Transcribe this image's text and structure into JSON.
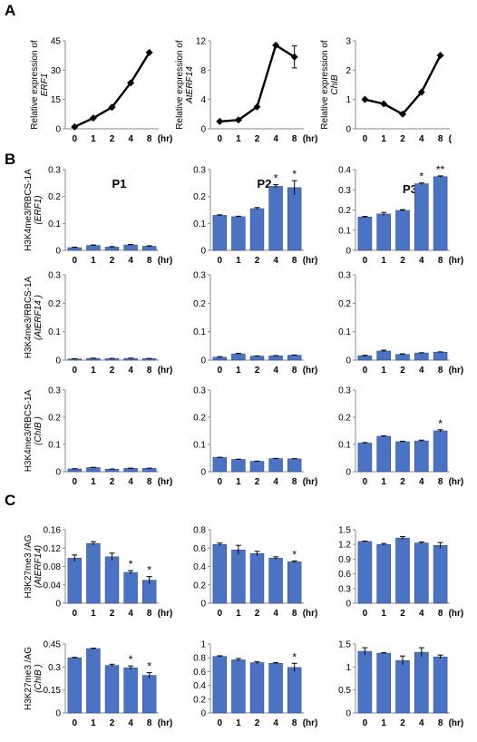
{
  "panels": {
    "A": "A",
    "B": "B",
    "C": "C"
  },
  "chart_data": [
    {
      "id": "A1",
      "panel": "A",
      "type": "line",
      "categories": [
        "0",
        "1",
        "2",
        "4",
        "8"
      ],
      "x_unit": "(hr)",
      "values": [
        1,
        5.5,
        11,
        23.5,
        39
      ],
      "errors": [
        0,
        0,
        0,
        0,
        0
      ],
      "ylim": [
        0,
        45
      ],
      "yticks": [
        "0",
        "15",
        "30",
        "45"
      ],
      "ylabel": [
        "Relative expression  of",
        "ERF1"
      ]
    },
    {
      "id": "A2",
      "panel": "A",
      "type": "line",
      "categories": [
        "0",
        "1",
        "2",
        "4",
        "8"
      ],
      "x_unit": "(hr)",
      "values": [
        1,
        1.2,
        3,
        11.4,
        9.8
      ],
      "errors": [
        0,
        0,
        0,
        0,
        1.5
      ],
      "ylim": [
        0,
        12
      ],
      "yticks": [
        "0",
        "4",
        "8",
        "12"
      ],
      "ylabel": [
        "Relative expression  of",
        "AtERF14"
      ]
    },
    {
      "id": "A3",
      "panel": "A",
      "type": "line",
      "categories": [
        "0",
        "1",
        "2",
        "4",
        "8"
      ],
      "x_unit": "(",
      "values": [
        1,
        0.85,
        0.5,
        1.25,
        2.5
      ],
      "errors": [
        0,
        0,
        0,
        0,
        0
      ],
      "ylim": [
        0,
        3
      ],
      "yticks": [
        "0",
        "1",
        "2",
        "3"
      ],
      "ylabel": [
        "Relative expression  of",
        "ChIB"
      ]
    },
    {
      "id": "B11",
      "panel": "B",
      "type": "bar",
      "title": "P1",
      "categories": [
        "0",
        "1",
        "2",
        "4",
        "8"
      ],
      "x_unit": "(hr)",
      "values": [
        0.01,
        0.018,
        0.012,
        0.02,
        0.015
      ],
      "errors": [
        0.002,
        0.002,
        0.002,
        0.002,
        0.002
      ],
      "stars": [
        "",
        "",
        "",
        "",
        ""
      ],
      "ylim": [
        0,
        0.3
      ],
      "yticks": [
        "0",
        "0.1",
        "0.2",
        "0.3"
      ],
      "ylabel": [
        "H3K4me3/RBCS-1A",
        "(ERF1)"
      ]
    },
    {
      "id": "B12",
      "panel": "B",
      "type": "bar",
      "title": "P2",
      "categories": [
        "0",
        "1",
        "2",
        "4",
        "8"
      ],
      "x_unit": "(hr)",
      "values": [
        0.13,
        0.125,
        0.155,
        0.238,
        0.233
      ],
      "errors": [
        0.002,
        0.002,
        0.004,
        0.006,
        0.026
      ],
      "stars": [
        "",
        "",
        "",
        "*",
        "*"
      ],
      "ylim": [
        0,
        0.3
      ],
      "yticks": [
        "0",
        "0.1",
        "0.2",
        "0.3"
      ],
      "ylabel": [
        "",
        ""
      ]
    },
    {
      "id": "B13",
      "panel": "B",
      "type": "bar",
      "title": "P3",
      "categories": [
        "0",
        "1",
        "2",
        "4",
        "8"
      ],
      "x_unit": "(hr)",
      "values": [
        0.165,
        0.18,
        0.198,
        0.33,
        0.365
      ],
      "errors": [
        0.003,
        0.008,
        0.004,
        0.004,
        0.004
      ],
      "stars": [
        "",
        "",
        "",
        "*",
        "**"
      ],
      "ylim": [
        0,
        0.4
      ],
      "yticks": [
        "0",
        "0.1",
        "0.2",
        "0.3",
        "0.4"
      ],
      "ylabel": [
        "",
        ""
      ]
    },
    {
      "id": "B21",
      "panel": "B",
      "type": "bar",
      "title": "",
      "categories": [
        "0",
        "1",
        "2",
        "4",
        "8"
      ],
      "x_unit": "(hr)",
      "values": [
        0.004,
        0.006,
        0.005,
        0.006,
        0.005
      ],
      "errors": [
        0.001,
        0.001,
        0.001,
        0.001,
        0.001
      ],
      "stars": [
        "",
        "",
        "",
        "",
        ""
      ],
      "ylim": [
        0,
        0.3
      ],
      "yticks": [
        "0",
        "0.1",
        "0.2",
        "0.3"
      ],
      "ylabel": [
        "H3K4me3/RBCS-1A",
        "(AtERF14 )"
      ]
    },
    {
      "id": "B22",
      "panel": "B",
      "type": "bar",
      "title": "",
      "categories": [
        "0",
        "1",
        "2",
        "4",
        "8"
      ],
      "x_unit": "(hr)",
      "values": [
        0.01,
        0.022,
        0.014,
        0.015,
        0.017
      ],
      "errors": [
        0.002,
        0.002,
        0.001,
        0.001,
        0.001
      ],
      "stars": [
        "",
        "",
        "",
        "",
        ""
      ],
      "ylim": [
        0,
        0.3
      ],
      "yticks": [
        "0",
        "0.1",
        "0.2",
        "0.3"
      ],
      "ylabel": [
        "",
        ""
      ]
    },
    {
      "id": "B23",
      "panel": "B",
      "type": "bar",
      "title": "",
      "categories": [
        "0",
        "1",
        "2",
        "4",
        "8"
      ],
      "x_unit": "(hr)",
      "values": [
        0.015,
        0.032,
        0.02,
        0.025,
        0.028
      ],
      "errors": [
        0.002,
        0.003,
        0.002,
        0.001,
        0.001
      ],
      "stars": [
        "",
        "",
        "",
        "",
        ""
      ],
      "ylim": [
        0,
        0.3
      ],
      "yticks": [
        "0",
        "0.1",
        "0.2",
        "0.3"
      ],
      "ylabel": [
        "",
        ""
      ]
    },
    {
      "id": "B31",
      "panel": "B",
      "type": "bar",
      "title": "",
      "categories": [
        "0",
        "1",
        "2",
        "4",
        "8"
      ],
      "x_unit": "(hr)",
      "values": [
        0.01,
        0.015,
        0.009,
        0.012,
        0.012
      ],
      "errors": [
        0.001,
        0.001,
        0.001,
        0.001,
        0.001
      ],
      "stars": [
        "",
        "",
        "",
        "",
        ""
      ],
      "ylim": [
        0,
        0.3
      ],
      "yticks": [
        "0",
        "0.1",
        "0.2",
        "0.3"
      ],
      "ylabel": [
        "H3K4me3/RBCS-1A",
        "(ChIB  )"
      ]
    },
    {
      "id": "B32",
      "panel": "B",
      "type": "bar",
      "title": "",
      "categories": [
        "0",
        "1",
        "2",
        "4",
        "8"
      ],
      "x_unit": "(hr)",
      "values": [
        0.052,
        0.045,
        0.038,
        0.048,
        0.047
      ],
      "errors": [
        0.001,
        0.001,
        0.001,
        0.001,
        0.001
      ],
      "stars": [
        "",
        "",
        "",
        "",
        ""
      ],
      "ylim": [
        0,
        0.3
      ],
      "yticks": [
        "0",
        "0.1",
        "0.2",
        "0.3"
      ],
      "ylabel": [
        "",
        ""
      ]
    },
    {
      "id": "B33",
      "panel": "B",
      "type": "bar",
      "title": "",
      "categories": [
        "0",
        "1",
        "2",
        "4",
        "8"
      ],
      "x_unit": "(hr)",
      "values": [
        0.105,
        0.13,
        0.11,
        0.113,
        0.15
      ],
      "errors": [
        0.002,
        0.002,
        0.002,
        0.003,
        0.004
      ],
      "stars": [
        "",
        "",
        "",
        "",
        "*"
      ],
      "ylim": [
        0,
        0.3
      ],
      "yticks": [
        "0",
        "0.1",
        "0.2",
        "0.3"
      ],
      "ylabel": [
        "",
        ""
      ]
    },
    {
      "id": "C11",
      "panel": "C",
      "type": "bar",
      "title": "",
      "categories": [
        "0",
        "1",
        "2",
        "4",
        "8"
      ],
      "x_unit": "(hr)",
      "values": [
        0.098,
        0.13,
        0.101,
        0.067,
        0.05
      ],
      "errors": [
        0.007,
        0.004,
        0.008,
        0.004,
        0.008
      ],
      "stars": [
        "",
        "",
        "",
        "*",
        "*"
      ],
      "ylim": [
        0,
        0.16
      ],
      "yticks": [
        "0",
        "0.04",
        "0.08",
        "0.12",
        "0.16"
      ],
      "ylabel": [
        "H3K27me3 /AG",
        "(AtERF14)"
      ]
    },
    {
      "id": "C12",
      "panel": "C",
      "type": "bar",
      "title": "",
      "categories": [
        "0",
        "1",
        "2",
        "4",
        "8"
      ],
      "x_unit": "(hr)",
      "values": [
        0.64,
        0.58,
        0.54,
        0.49,
        0.45
      ],
      "errors": [
        0.015,
        0.05,
        0.025,
        0.015,
        0.01
      ],
      "stars": [
        "",
        "",
        "",
        "",
        "*"
      ],
      "ylim": [
        0,
        0.8
      ],
      "yticks": [
        "0",
        "0.2",
        "0.4",
        "0.6",
        "0.8"
      ],
      "ylabel": [
        "",
        ""
      ]
    },
    {
      "id": "C13",
      "panel": "C",
      "type": "bar",
      "title": "",
      "categories": [
        "0",
        "1",
        "2",
        "4",
        "8"
      ],
      "x_unit": "(hr)",
      "values": [
        1.26,
        1.2,
        1.33,
        1.23,
        1.18
      ],
      "errors": [
        0.01,
        0.02,
        0.03,
        0.02,
        0.06
      ],
      "stars": [
        "",
        "",
        "",
        "",
        ""
      ],
      "ylim": [
        0,
        1.5
      ],
      "yticks": [
        "0",
        "0.3",
        "0.6",
        "0.9",
        "1.2",
        "1.5"
      ],
      "ylabel": [
        "",
        ""
      ]
    },
    {
      "id": "C21",
      "panel": "C",
      "type": "bar",
      "title": "",
      "categories": [
        "0",
        "1",
        "2",
        "4",
        "8"
      ],
      "x_unit": "(hr)",
      "values": [
        0.36,
        0.42,
        0.31,
        0.295,
        0.245
      ],
      "errors": [
        0.003,
        0.003,
        0.008,
        0.012,
        0.018
      ],
      "stars": [
        "",
        "",
        "",
        "*",
        "*"
      ],
      "ylim": [
        0,
        0.45
      ],
      "yticks": [
        "0",
        "0.15",
        "0.3",
        "0.45"
      ],
      "ylabel": [
        "H3K27me3 /AG",
        "(ChIB )"
      ]
    },
    {
      "id": "C22",
      "panel": "C",
      "type": "bar",
      "title": "",
      "categories": [
        "0",
        "1",
        "2",
        "4",
        "8"
      ],
      "x_unit": "(hr)",
      "values": [
        0.82,
        0.77,
        0.73,
        0.72,
        0.66
      ],
      "errors": [
        0.01,
        0.02,
        0.015,
        0.012,
        0.06
      ],
      "stars": [
        "",
        "",
        "",
        "",
        "*"
      ],
      "ylim": [
        0,
        1
      ],
      "yticks": [
        "0",
        "0.2",
        "0.4",
        "0.6",
        "0.8",
        "1"
      ],
      "ylabel": [
        "",
        ""
      ]
    },
    {
      "id": "C23",
      "panel": "C",
      "type": "bar",
      "title": "",
      "categories": [
        "0",
        "1",
        "2",
        "4",
        "8"
      ],
      "x_unit": "(hr)",
      "values": [
        1.34,
        1.3,
        1.14,
        1.32,
        1.22
      ],
      "errors": [
        0.08,
        0.01,
        0.1,
        0.1,
        0.04
      ],
      "stars": [
        "",
        "",
        "",
        "",
        ""
      ],
      "ylim": [
        0,
        1.5
      ],
      "yticks": [
        "0",
        "0.5",
        "1",
        "1.5"
      ],
      "ylabel": [
        "",
        ""
      ]
    }
  ]
}
